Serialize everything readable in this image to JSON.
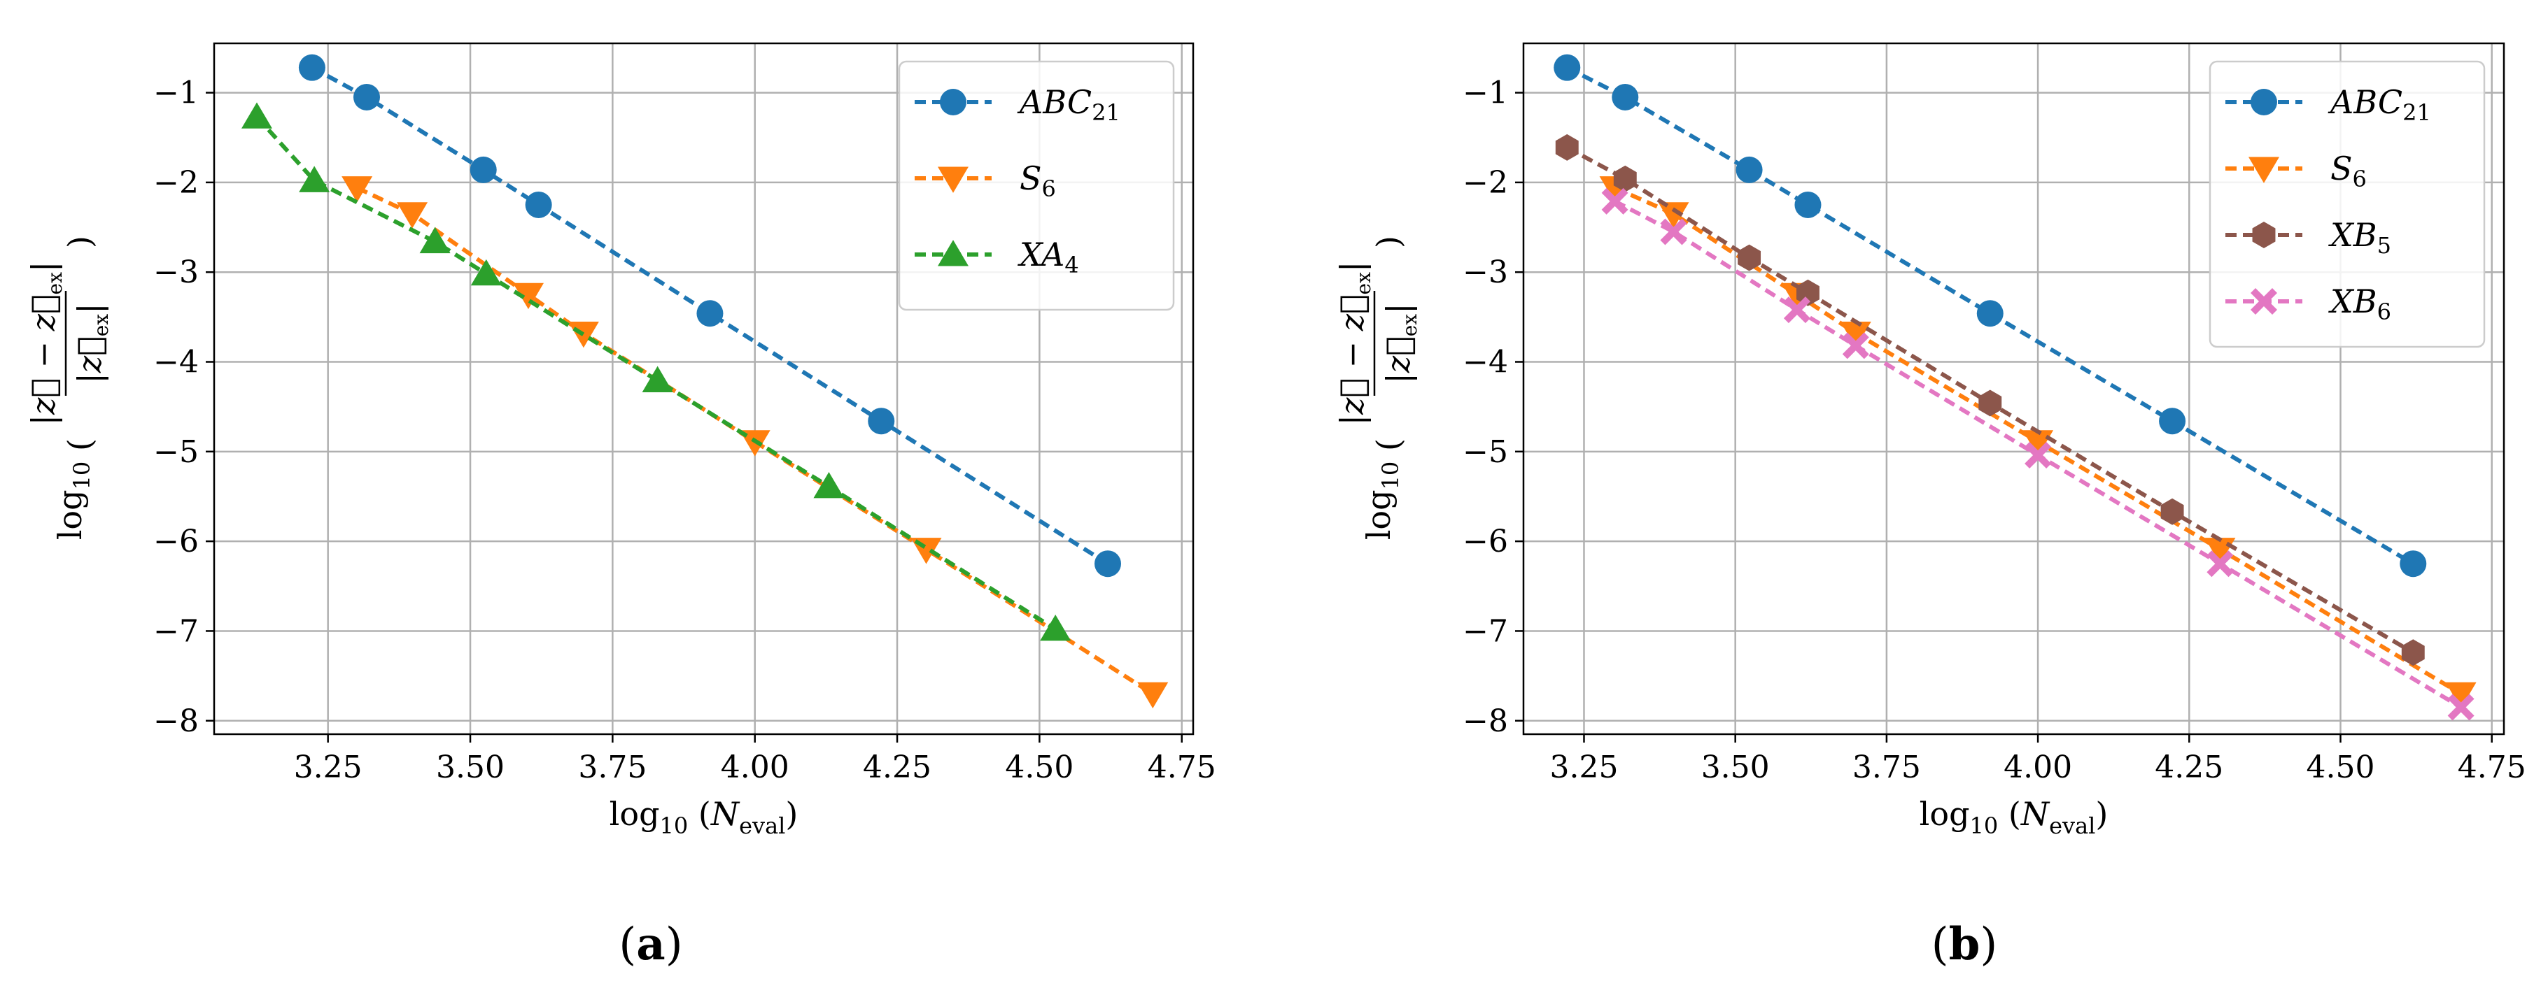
{
  "colors": {
    "ABC21": "#1f77b4",
    "S6": "#ff7f0e",
    "XA4": "#2ca02c",
    "XB5": "#8c564b",
    "XB6": "#e377c2"
  },
  "chart_data": [
    {
      "type": "line",
      "panel_label": "(a)",
      "xlabel": "log₁₀ (N_eval)",
      "xlabel_main": "log",
      "xlabel_sub": "10",
      "xlabel_var": "N",
      "xlabel_varsub": "eval",
      "ylabel": "log₁₀ ( |z⃗ − z⃗_ex| / |z⃗_ex| )",
      "ylabel_main": "log",
      "ylabel_sub": "10",
      "xlim": [
        3.05,
        4.77
      ],
      "ylim": [
        -8.15,
        -0.45
      ],
      "xticks": [
        3.25,
        3.5,
        3.75,
        4.0,
        4.25,
        4.5,
        4.75
      ],
      "xtick_labels": [
        "3.25",
        "3.50",
        "3.75",
        "4.00",
        "4.25",
        "4.50",
        "4.75"
      ],
      "yticks": [
        -1,
        -2,
        -3,
        -4,
        -5,
        -6,
        -7,
        -8
      ],
      "ytick_labels": [
        "−1",
        "−2",
        "−3",
        "−4",
        "−5",
        "−6",
        "−7",
        "−8"
      ],
      "grid": true,
      "legend_position": "top-right",
      "series": [
        {
          "key": "ABC21",
          "name_main": "ABC",
          "name_sub": "21",
          "marker": "circle",
          "x": [
            3.222,
            3.318,
            3.523,
            3.62,
            3.921,
            4.222,
            4.62
          ],
          "y": [
            -0.72,
            -1.05,
            -1.86,
            -2.25,
            -3.46,
            -4.66,
            -6.25
          ]
        },
        {
          "key": "S6",
          "name_main": "S",
          "name_sub": "6",
          "marker": "triangle-down",
          "x": [
            3.301,
            3.398,
            3.602,
            3.699,
            4.0,
            4.301,
            4.699
          ],
          "y": [
            -2.06,
            -2.35,
            -3.25,
            -3.68,
            -4.89,
            -6.09,
            -7.7
          ]
        },
        {
          "key": "XA4",
          "name_main": "XA",
          "name_sub": "4",
          "marker": "triangle-up",
          "x": [
            3.125,
            3.226,
            3.438,
            3.528,
            3.829,
            4.13,
            4.528
          ],
          "y": [
            -1.27,
            -1.98,
            -2.66,
            -3.02,
            -4.21,
            -5.39,
            -6.98
          ]
        }
      ]
    },
    {
      "type": "line",
      "panel_label": "(b)",
      "xlabel": "log₁₀ (N_eval)",
      "xlabel_main": "log",
      "xlabel_sub": "10",
      "xlabel_var": "N",
      "xlabel_varsub": "eval",
      "ylabel": "log₁₀ ( |z⃗ − z⃗_ex| / |z⃗_ex| )",
      "ylabel_main": "log",
      "ylabel_sub": "10",
      "xlim": [
        3.15,
        4.77
      ],
      "ylim": [
        -8.15,
        -0.45
      ],
      "xticks": [
        3.25,
        3.5,
        3.75,
        4.0,
        4.25,
        4.5,
        4.75
      ],
      "xtick_labels": [
        "3.25",
        "3.50",
        "3.75",
        "4.00",
        "4.25",
        "4.50",
        "4.75"
      ],
      "yticks": [
        -1,
        -2,
        -3,
        -4,
        -5,
        -6,
        -7,
        -8
      ],
      "ytick_labels": [
        "−1",
        "−2",
        "−3",
        "−4",
        "−5",
        "−6",
        "−7",
        "−8"
      ],
      "grid": true,
      "legend_position": "top-right",
      "series": [
        {
          "key": "ABC21",
          "name_main": "ABC",
          "name_sub": "21",
          "marker": "circle",
          "x": [
            3.222,
            3.318,
            3.523,
            3.62,
            3.921,
            4.222,
            4.62
          ],
          "y": [
            -0.72,
            -1.05,
            -1.86,
            -2.25,
            -3.46,
            -4.66,
            -6.25
          ]
        },
        {
          "key": "S6",
          "name_main": "S",
          "name_sub": "6",
          "marker": "triangle-down",
          "x": [
            3.301,
            3.398,
            3.602,
            3.699,
            4.0,
            4.301,
            4.699
          ],
          "y": [
            -2.06,
            -2.35,
            -3.25,
            -3.68,
            -4.89,
            -6.09,
            -7.7
          ]
        },
        {
          "key": "XB5",
          "name_main": "XB",
          "name_sub": "5",
          "marker": "hexagon",
          "x": [
            3.222,
            3.318,
            3.523,
            3.62,
            3.921,
            4.222,
            4.62
          ],
          "y": [
            -1.61,
            -1.96,
            -2.84,
            -3.23,
            -4.46,
            -5.67,
            -7.24
          ]
        },
        {
          "key": "XB6",
          "name_main": "XB",
          "name_sub": "6",
          "marker": "x-filled",
          "x": [
            3.301,
            3.398,
            3.602,
            3.699,
            4.0,
            4.301,
            4.699
          ],
          "y": [
            -2.21,
            -2.55,
            -3.42,
            -3.82,
            -5.04,
            -6.25,
            -7.85
          ]
        }
      ]
    }
  ]
}
